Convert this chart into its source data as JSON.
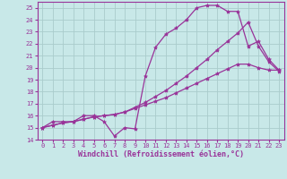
{
  "background_color": "#c8e8e8",
  "grid_color": "#aacccc",
  "line_color": "#993399",
  "marker": "*",
  "markersize": 3,
  "linewidth": 0.9,
  "xlim": [
    -0.5,
    23.5
  ],
  "ylim": [
    14,
    25.5
  ],
  "yticks": [
    14,
    15,
    16,
    17,
    18,
    19,
    20,
    21,
    22,
    23,
    24,
    25
  ],
  "xticks": [
    0,
    1,
    2,
    3,
    4,
    5,
    6,
    7,
    8,
    9,
    10,
    11,
    12,
    13,
    14,
    15,
    16,
    17,
    18,
    19,
    20,
    21,
    22,
    23
  ],
  "xlabel": "Windchill (Refroidissement éolien,°C)",
  "xlabel_fontsize": 6,
  "tick_fontsize": 5,
  "line1_x": [
    0,
    1,
    2,
    3,
    4,
    5,
    6,
    7,
    8,
    9,
    10,
    11,
    12,
    13,
    14,
    15,
    16,
    17,
    18,
    19,
    20,
    21,
    22,
    23
  ],
  "line1_y": [
    15,
    15.5,
    15.5,
    15.5,
    16,
    16,
    15.5,
    14.3,
    15.0,
    14.9,
    19.3,
    21.7,
    22.8,
    23.3,
    24.0,
    25.0,
    25.2,
    25.2,
    24.7,
    24.7,
    21.8,
    22.2,
    20.7,
    19.8
  ],
  "line2_x": [
    0,
    1,
    2,
    3,
    4,
    5,
    6,
    7,
    8,
    9,
    10,
    11,
    12,
    13,
    14,
    15,
    16,
    17,
    18,
    19,
    20,
    21,
    22,
    23
  ],
  "line2_y": [
    15,
    15.2,
    15.4,
    15.5,
    15.7,
    15.9,
    16.0,
    16.1,
    16.3,
    16.7,
    17.1,
    17.6,
    18.1,
    18.7,
    19.3,
    20.0,
    20.7,
    21.5,
    22.2,
    22.9,
    23.8,
    21.8,
    20.5,
    19.7
  ],
  "line3_x": [
    0,
    1,
    2,
    3,
    4,
    5,
    6,
    7,
    8,
    9,
    10,
    11,
    12,
    13,
    14,
    15,
    16,
    17,
    18,
    19,
    20,
    21,
    22,
    23
  ],
  "line3_y": [
    15,
    15.2,
    15.4,
    15.5,
    15.7,
    15.9,
    16.0,
    16.1,
    16.3,
    16.6,
    16.9,
    17.2,
    17.5,
    17.9,
    18.3,
    18.7,
    19.1,
    19.5,
    19.9,
    20.3,
    20.3,
    20.0,
    19.8,
    19.8
  ]
}
